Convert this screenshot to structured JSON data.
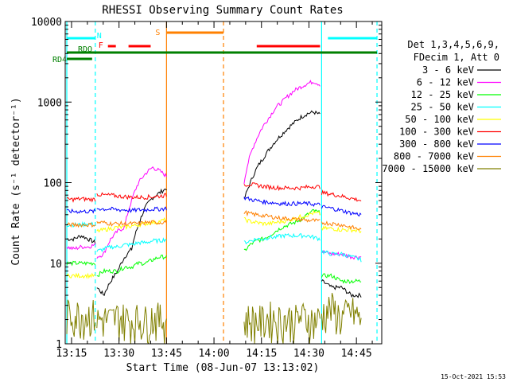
{
  "chart_data": {
    "type": "line",
    "title": "RHESSI Observing Summary Count Rates",
    "xlabel": "Start Time (08-Jun-07 13:13:02)",
    "ylabel": "Count Rate (s⁻¹ detector⁻¹)",
    "yscale": "log",
    "ylim": [
      1,
      10000
    ],
    "xlim_minutes": [
      0,
      100
    ],
    "x_ticks": [
      {
        "label": "13:15",
        "value": 2
      },
      {
        "label": "13:30",
        "value": 17
      },
      {
        "label": "13:45",
        "value": 32
      },
      {
        "label": "14:00",
        "value": 47
      },
      {
        "label": "14:15",
        "value": 62
      },
      {
        "label": "14:30",
        "value": 77
      },
      {
        "label": "14:45",
        "value": 92
      }
    ],
    "y_ticks": [
      {
        "label": "1",
        "value": 1
      },
      {
        "label": "10",
        "value": 10
      },
      {
        "label": "100",
        "value": 100
      },
      {
        "label": "1000",
        "value": 1000
      },
      {
        "label": "10000",
        "value": 10000
      }
    ],
    "legend_header": [
      "Det 1,3,4,5,6,9,",
      "FDecim 1, Att 0"
    ],
    "timestamp": "15-Oct-2021 15:53",
    "series": [
      {
        "name": "3 - 6 keV",
        "color": "#000000"
      },
      {
        "name": "6 - 12 keV",
        "color": "#ff00ff"
      },
      {
        "name": "12 - 25 keV",
        "color": "#00ff00"
      },
      {
        "name": "25 - 50 keV",
        "color": "#00ffff"
      },
      {
        "name": "50 - 100 keV",
        "color": "#ffff00"
      },
      {
        "name": "100 - 300 keV",
        "color": "#ff0000"
      },
      {
        "name": "300 - 800 keV",
        "color": "#0000ff"
      },
      {
        "name": "800 - 7000 keV",
        "color": "#ff8000"
      },
      {
        "name": "7000 - 15000 keV",
        "color": "#808000"
      }
    ],
    "segments": [
      {
        "start": 0.5,
        "end": 9.5,
        "values": {
          "3 - 6 keV": [
            20,
            20,
            22,
            20,
            18
          ],
          "6 - 12 keV": [
            16,
            15,
            16,
            16,
            17
          ],
          "12 - 25 keV": [
            10,
            10,
            10,
            10,
            10
          ],
          "25 - 50 keV": [
            30,
            30,
            30,
            31,
            30
          ],
          "50 - 100 keV": [
            7,
            7,
            7,
            7,
            7
          ],
          "100 - 300 keV": [
            62,
            62,
            63,
            62,
            62
          ],
          "300 - 800 keV": [
            44,
            44,
            44,
            44,
            44
          ],
          "800 - 7000 keV": [
            30,
            30,
            30,
            30,
            30
          ],
          "7000 - 15000 keV": [
            1.8,
            1.8,
            1.8,
            1.8,
            1.8
          ]
        }
      },
      {
        "start": 10,
        "end": 32,
        "values": {
          "3 - 6 keV": [
            5,
            4,
            6,
            8,
            12,
            15,
            30,
            50,
            65,
            75,
            85
          ],
          "6 - 12 keV": [
            12,
            13,
            20,
            25,
            28,
            60,
            100,
            130,
            155,
            140,
            120
          ],
          "12 - 25 keV": [
            7,
            8,
            8,
            8,
            9,
            9,
            10,
            10,
            11,
            12,
            12
          ],
          "25 - 50 keV": [
            14,
            15,
            16,
            16,
            17,
            17,
            18,
            18,
            19,
            19,
            20
          ],
          "50 - 100 keV": [
            25,
            26,
            27,
            28,
            28,
            29,
            30,
            31,
            32,
            33,
            35
          ],
          "100 - 300 keV": [
            72,
            70,
            70,
            68,
            67,
            66,
            66,
            66,
            67,
            68,
            70
          ],
          "300 - 800 keV": [
            48,
            47,
            47,
            46,
            46,
            45,
            46,
            46,
            47,
            47,
            48
          ],
          "800 - 7000 keV": [
            32,
            32,
            31,
            31,
            31,
            31,
            31,
            32,
            32,
            32,
            33
          ],
          "7000 - 15000 keV": [
            1.5,
            1.6,
            1.5,
            1.7,
            1.6,
            1.5,
            1.6,
            1.5,
            1.7,
            1.6,
            1.5
          ]
        }
      },
      {
        "start": 56.5,
        "end": 80.5,
        "values": {
          "3 - 6 keV": [
            60,
            100,
            150,
            200,
            260,
            330,
            400,
            480,
            560,
            650,
            720,
            750,
            700
          ],
          "6 - 12 keV": [
            100,
            220,
            350,
            500,
            650,
            850,
            1000,
            1200,
            1400,
            1550,
            1700,
            1800,
            1650
          ],
          "12 - 25 keV": [
            14,
            17,
            19,
            20,
            22,
            25,
            28,
            30,
            32,
            35,
            40,
            45,
            42
          ],
          "25 - 50 keV": [
            18,
            19,
            20,
            20,
            21,
            21,
            22,
            22,
            22,
            22,
            22,
            21,
            20
          ],
          "50 - 100 keV": [
            35,
            33,
            32,
            31,
            31,
            32,
            33,
            34,
            36,
            38,
            40,
            42,
            41
          ],
          "100 - 300 keV": [
            95,
            95,
            93,
            90,
            88,
            87,
            86,
            86,
            86,
            86,
            88,
            90,
            88
          ],
          "300 - 800 keV": [
            65,
            62,
            60,
            58,
            57,
            56,
            55,
            55,
            55,
            55,
            55,
            54,
            53
          ],
          "800 - 7000 keV": [
            43,
            41,
            40,
            39,
            38,
            37,
            36,
            36,
            35,
            35,
            34,
            34,
            33
          ],
          "7000 - 15000 keV": [
            1.5,
            1.6,
            1.5,
            1.5,
            1.7,
            1.6,
            1.5,
            1.6,
            1.5,
            1.7,
            1.6,
            1.5,
            1.6
          ]
        }
      },
      {
        "start": 81,
        "end": 93.5,
        "values": {
          "3 - 6 keV": [
            6,
            5,
            5,
            4,
            4
          ],
          "6 - 12 keV": [
            14,
            13,
            13,
            12,
            12
          ],
          "12 - 25 keV": [
            7,
            7,
            6,
            6,
            6
          ],
          "25 - 50 keV": [
            14,
            13,
            13,
            12,
            11
          ],
          "50 - 100 keV": [
            27,
            27,
            26,
            26,
            25
          ],
          "100 - 300 keV": [
            75,
            72,
            68,
            64,
            60
          ],
          "300 - 800 keV": [
            50,
            48,
            45,
            42,
            40
          ],
          "800 - 7000 keV": [
            32,
            31,
            30,
            28,
            26
          ],
          "7000 - 15000 keV": [
            1.8,
            2.2,
            1.6,
            2.0,
            1.5
          ]
        }
      }
    ],
    "flag_lines": [
      {
        "label": "RD4",
        "color": "#008000",
        "start": 0.5,
        "end": 8.5,
        "level": "low"
      },
      {
        "label": "RDO",
        "color": "#008000",
        "start": 0.5,
        "end": 98.5,
        "level": "high"
      },
      {
        "label": "N",
        "color": "#00ffff",
        "start": 0.5,
        "end": 9.5,
        "level": "top"
      },
      {
        "label": "",
        "color": "#00ffff",
        "start": 83,
        "end": 98.5,
        "level": "top"
      },
      {
        "label": "F",
        "color": "#ff0000",
        "start": 13.5,
        "end": 16,
        "level": "mid"
      },
      {
        "label": "",
        "color": "#ff0000",
        "start": 20,
        "end": 27,
        "level": "mid"
      },
      {
        "label": "",
        "color": "#ff0000",
        "start": 60.5,
        "end": 80.5,
        "level": "mid"
      },
      {
        "label": "S",
        "color": "#ff8000",
        "start": 32,
        "end": 50,
        "level": "upper"
      }
    ],
    "vertical_markers": [
      {
        "value": 0.5,
        "color": "#00ffff",
        "dash": false
      },
      {
        "value": 9.5,
        "color": "#00ffff",
        "dash": true
      },
      {
        "value": 32,
        "color": "#ff8000",
        "dash": false
      },
      {
        "value": 50,
        "color": "#ff8000",
        "dash": true
      },
      {
        "value": 81,
        "color": "#00ffff",
        "dash": false
      },
      {
        "value": 98.5,
        "color": "#00ffff",
        "dash": true
      }
    ]
  }
}
